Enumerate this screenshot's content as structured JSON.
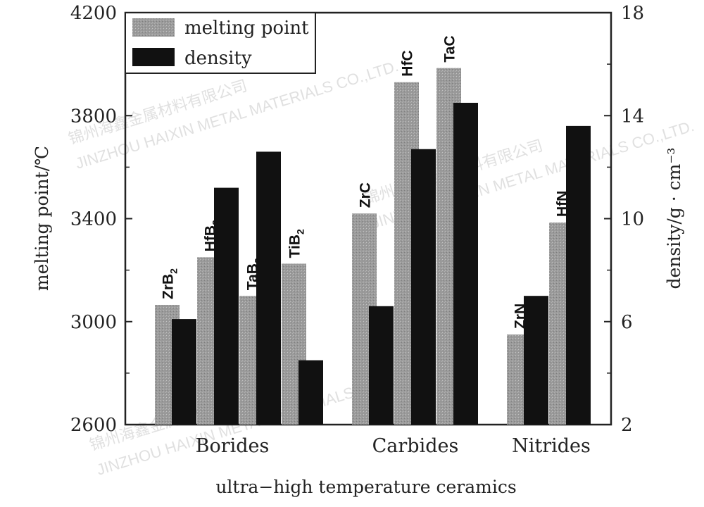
{
  "chart_data": {
    "type": "bar",
    "xlabel": "ultra−high temperature ceramics",
    "ylabel_left": "melting point/℃",
    "ylabel_right": "density/g · cm⁻³",
    "ylim_left": [
      2600,
      4200
    ],
    "ylim_right": [
      2,
      18
    ],
    "yticks_left": [
      2600,
      3000,
      3400,
      3800,
      4200
    ],
    "yticks_right": [
      2,
      6,
      10,
      14,
      18
    ],
    "legend": {
      "position": "top-left",
      "entries": [
        {
          "key": "melting_point",
          "label": "melting point"
        },
        {
          "key": "density",
          "label": "density"
        }
      ]
    },
    "groups": [
      {
        "name": "Borides",
        "materials": [
          "ZrB2",
          "HfB2",
          "TaB2",
          "TiB2"
        ]
      },
      {
        "name": "Carbides",
        "materials": [
          "ZrC",
          "HfC",
          "TaC"
        ]
      },
      {
        "name": "Nitrides",
        "materials": [
          "ZrN",
          "HfN"
        ]
      }
    ],
    "materials": [
      {
        "name": "ZrB2",
        "sub": "2",
        "base": "ZrB",
        "melting_point": 3065,
        "density": 6.1
      },
      {
        "name": "HfB2",
        "sub": "2",
        "base": "HfB",
        "melting_point": 3250,
        "density": 11.2
      },
      {
        "name": "TaB2",
        "sub": "2",
        "base": "TaB",
        "melting_point": 3100,
        "density": 12.6
      },
      {
        "name": "TiB2",
        "sub": "2",
        "base": "TiB",
        "melting_point": 3225,
        "density": 4.5
      },
      {
        "name": "ZrC",
        "sub": "",
        "base": "ZrC",
        "melting_point": 3420,
        "density": 6.6
      },
      {
        "name": "HfC",
        "sub": "",
        "base": "HfC",
        "melting_point": 3930,
        "density": 12.7
      },
      {
        "name": "TaC",
        "sub": "",
        "base": "TaC",
        "melting_point": 3985,
        "density": 14.5
      },
      {
        "name": "ZrN",
        "sub": "",
        "base": "ZrN",
        "melting_point": 2950,
        "density": 7.0
      },
      {
        "name": "HfN",
        "sub": "",
        "base": "HfN",
        "melting_point": 3385,
        "density": 13.6
      }
    ],
    "colors": {
      "melting_point": "#9a9a9a",
      "density": "#111111"
    }
  },
  "watermark": {
    "line_cn": "锦州海鑫金属材料有限公司",
    "line_en": "JINZHOU HAIXIN METAL MATERIALS CO.,LTD."
  }
}
